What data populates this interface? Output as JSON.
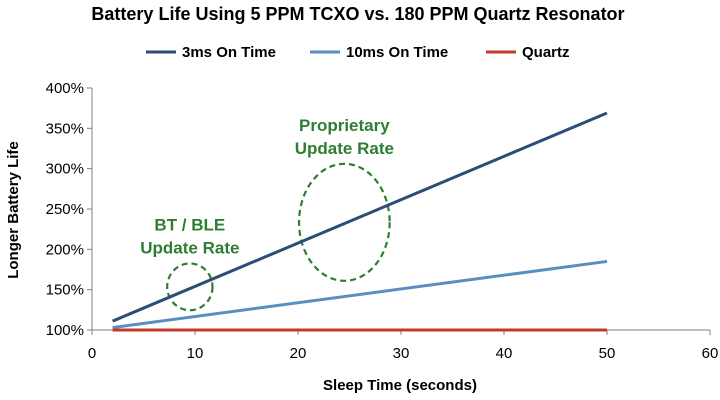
{
  "chart_data": {
    "type": "line",
    "title": "Battery Life Using 5 PPM TCXO vs. 180 PPM Quartz Resonator",
    "xlabel": "Sleep Time (seconds)",
    "ylabel": "Longer Battery Life",
    "xlim": [
      0,
      60
    ],
    "ylim": [
      1.0,
      4.0
    ],
    "x_ticks": [
      0,
      10,
      20,
      30,
      40,
      50,
      60
    ],
    "y_ticks": [
      1.0,
      1.5,
      2.0,
      2.5,
      3.0,
      3.5,
      4.0
    ],
    "y_tick_labels": [
      "100%",
      "150%",
      "200%",
      "250%",
      "300%",
      "350%",
      "400%"
    ],
    "legend_position": "top",
    "series": [
      {
        "name": "3ms On Time",
        "color": "#2c4d75",
        "x": [
          2,
          50
        ],
        "y": [
          1.11,
          3.69
        ]
      },
      {
        "name": "10ms On Time",
        "color": "#5b8ec0",
        "x": [
          2,
          50
        ],
        "y": [
          1.03,
          1.85
        ]
      },
      {
        "name": "Quartz",
        "color": "#c0392b",
        "x": [
          2,
          50
        ],
        "y": [
          1.0,
          1.0
        ]
      }
    ],
    "annotations": [
      {
        "lines": [
          "BT / BLE",
          "Update Rate"
        ],
        "color": "#2e7d32",
        "ellipse_center": [
          9.5,
          1.535
        ],
        "ellipse_radius": [
          2.2,
          0.29
        ]
      },
      {
        "lines": [
          "Proprietary",
          "Update Rate"
        ],
        "color": "#2e7d32",
        "ellipse_center": [
          24.5,
          2.335
        ],
        "ellipse_radius": [
          4.4,
          0.725
        ]
      }
    ]
  }
}
